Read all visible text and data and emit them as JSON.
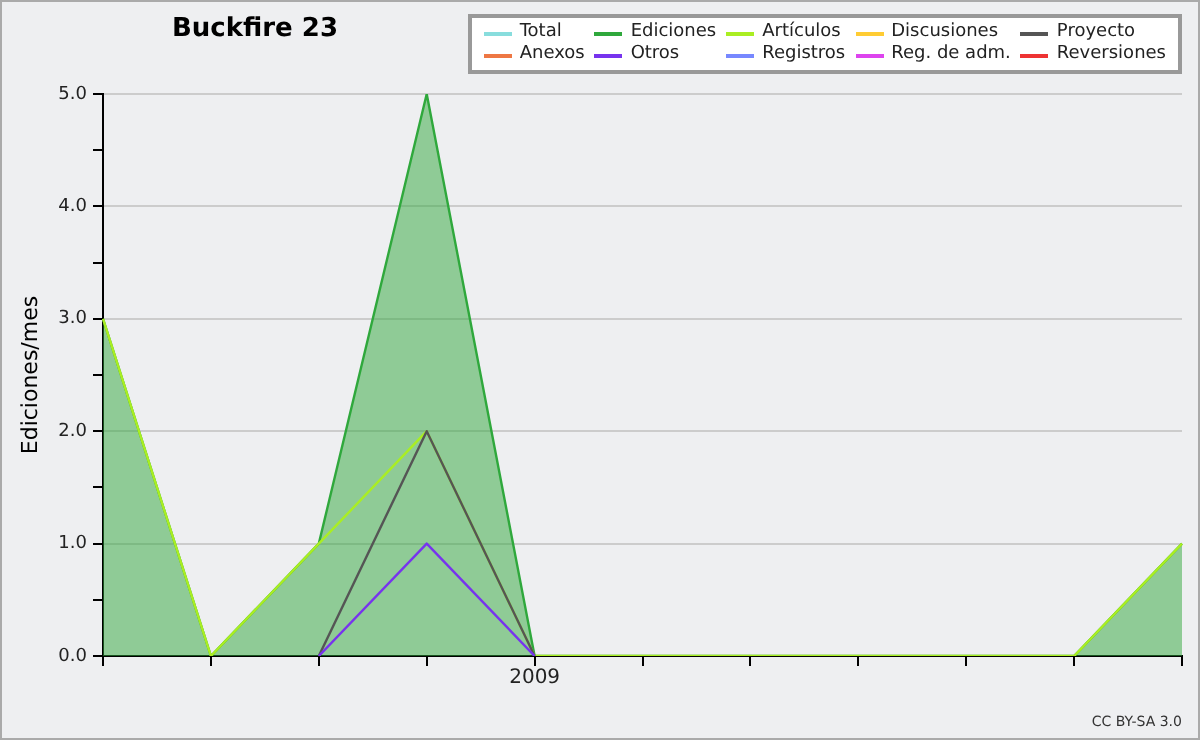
{
  "chart_data": {
    "type": "line",
    "title": "Buckfire 23",
    "ylabel": "Ediciones/mes",
    "categories": [
      null,
      null,
      null,
      null,
      "2009",
      null,
      null,
      null,
      null,
      null,
      null
    ],
    "series": [
      {
        "name": "Total",
        "color": "#88dddd",
        "values": [
          null,
          null,
          null,
          null,
          null,
          null,
          null,
          null,
          null,
          null,
          null
        ]
      },
      {
        "name": "Ediciones",
        "color": "#2fa83c",
        "type": "area",
        "values": [
          3,
          0,
          1,
          5,
          0,
          0,
          0,
          0,
          0,
          0,
          1
        ]
      },
      {
        "name": "Artículos",
        "color": "#aaee22",
        "values": [
          3,
          0,
          1,
          2,
          0,
          0,
          0,
          0,
          0,
          0,
          1
        ]
      },
      {
        "name": "Discusiones",
        "color": "#ffcc33",
        "values": [
          null,
          null,
          null,
          null,
          null,
          null,
          null,
          null,
          null,
          null,
          null
        ]
      },
      {
        "name": "Proyecto",
        "color": "#555555",
        "values": [
          null,
          null,
          0,
          2,
          0,
          null,
          null,
          null,
          null,
          null,
          null
        ]
      },
      {
        "name": "Anexos",
        "color": "#ee7744",
        "values": [
          null,
          null,
          null,
          null,
          null,
          null,
          null,
          null,
          null,
          null,
          null
        ]
      },
      {
        "name": "Otros",
        "color": "#7733ee",
        "values": [
          null,
          null,
          0,
          1,
          0,
          null,
          null,
          null,
          null,
          null,
          null
        ]
      },
      {
        "name": "Registros",
        "color": "#7788ff",
        "values": [
          null,
          null,
          null,
          null,
          null,
          null,
          null,
          null,
          null,
          null,
          null
        ]
      },
      {
        "name": "Reg. de adm.",
        "color": "#dd44ee",
        "values": [
          null,
          null,
          null,
          null,
          null,
          null,
          null,
          null,
          null,
          null,
          null
        ]
      },
      {
        "name": "Reversiones",
        "color": "#ee3333",
        "values": [
          null,
          null,
          null,
          null,
          null,
          null,
          null,
          null,
          null,
          null,
          null
        ]
      }
    ],
    "ylim": [
      0,
      5
    ],
    "yticks": [
      {
        "value": 0,
        "label": "0.0"
      },
      {
        "value": 0.5,
        "label": null
      },
      {
        "value": 1,
        "label": "1.0"
      },
      {
        "value": 1.5,
        "label": null
      },
      {
        "value": 2,
        "label": "2.0"
      },
      {
        "value": 2.5,
        "label": null
      },
      {
        "value": 3,
        "label": "3.0"
      },
      {
        "value": 3.5,
        "label": null
      },
      {
        "value": 4,
        "label": "4.0"
      },
      {
        "value": 4.5,
        "label": null
      },
      {
        "value": 5,
        "label": "5.0"
      }
    ],
    "grid": "y",
    "legend": "top right",
    "marker": "none",
    "line_style": "solid",
    "annotations": [
      "CC BY-SA 3.0"
    ]
  }
}
